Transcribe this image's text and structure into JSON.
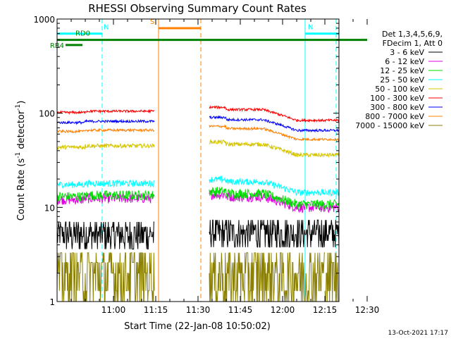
{
  "chart_data": {
    "type": "line",
    "title": "RHESSI Observing Summary Count Rates",
    "xlabel": "Start Time (22-Jan-08 10:50:02)",
    "ylabel": "Count Rate (s⁻¹ detector⁻¹)",
    "ylabel_base": "Count Rate (s",
    "ylabel_mid": " detector",
    "ylabel_end": ")",
    "ylabel_sup": "-1",
    "yscale": "log",
    "ylim": [
      1,
      1000
    ],
    "xlim_minutes": [
      -10,
      90
    ],
    "x_ticks": [
      {
        "label": "11:00",
        "min": 10
      },
      {
        "label": "11:15",
        "min": 25
      },
      {
        "label": "11:30",
        "min": 40
      },
      {
        "label": "11:45",
        "min": 55
      },
      {
        "label": "12:00",
        "min": 70
      },
      {
        "label": "12:15",
        "min": 85
      },
      {
        "label": "12:30",
        "min": 100
      }
    ],
    "y_ticks": [
      {
        "label": "1",
        "value": 1
      },
      {
        "label": "10",
        "value": 10
      },
      {
        "label": "100",
        "value": 100
      },
      {
        "label": "1000",
        "value": 1000
      }
    ],
    "legend_header": [
      "Det 1,3,4,5,6,9,",
      "FDecim 1, Att 0"
    ],
    "series": [
      {
        "name": "3 - 6 keV",
        "color": "#000000",
        "level": 5.0,
        "noise": 0.35,
        "style": "noisy"
      },
      {
        "name": "6 - 12 keV",
        "color": "#e000e0",
        "level": 12.5,
        "noise": 0.12
      },
      {
        "name": "12 - 25 keV",
        "color": "#00e000",
        "level": 13.5,
        "noise": 0.12
      },
      {
        "name": "25 - 50 keV",
        "color": "#00ffff",
        "level": 18.0,
        "noise": 0.08
      },
      {
        "name": "50 - 100 keV",
        "color": "#d4c400",
        "level": 45.0,
        "noise": 0.05
      },
      {
        "name": "100 - 300 keV",
        "color": "#ff0000",
        "level": 105.0,
        "noise": 0.03
      },
      {
        "name": "300 - 800 keV",
        "color": "#0000ff",
        "level": 82.0,
        "noise": 0.03
      },
      {
        "name": "800 - 7000 keV",
        "color": "#ff8000",
        "level": 66.0,
        "noise": 0.03
      },
      {
        "name": "7000 - 15000 keV",
        "color": "#8b8000",
        "level": 2.2,
        "noise": 0.5,
        "style": "step"
      }
    ],
    "data_segments_minutes": [
      [
        -10,
        24.5
      ],
      [
        44,
        85
      ],
      [
        85,
        90
      ]
    ],
    "annotations": [
      {
        "label": "N",
        "color": "#00ffff",
        "value": 700,
        "start": -10,
        "end": 6
      },
      {
        "label": "S",
        "color": "#ff8000",
        "value": 800,
        "start": 26,
        "end": 41
      },
      {
        "label": "RD0",
        "color": "#008000",
        "value": 600,
        "start": -10,
        "end": 100
      },
      {
        "label": "RB4",
        "color": "#008000",
        "value": 530,
        "start": -7,
        "end": -1
      },
      {
        "label": "N",
        "color": "#00ffff",
        "value": 700,
        "start": 78,
        "end": 90
      }
    ],
    "vertical_markers": [
      {
        "min": -10,
        "color": "#00ffff",
        "dashed": false
      },
      {
        "min": 6,
        "color": "#00ffff",
        "dashed": true
      },
      {
        "min": 26,
        "color": "#ff8000",
        "dashed": false
      },
      {
        "min": 41,
        "color": "#ff8000",
        "dashed": true
      },
      {
        "min": 78,
        "color": "#00ffff",
        "dashed": false
      },
      {
        "min": 89,
        "color": "#00ffff",
        "dashed": true
      }
    ]
  },
  "footer": {
    "timestamp": "13-Oct-2021 17:17"
  }
}
